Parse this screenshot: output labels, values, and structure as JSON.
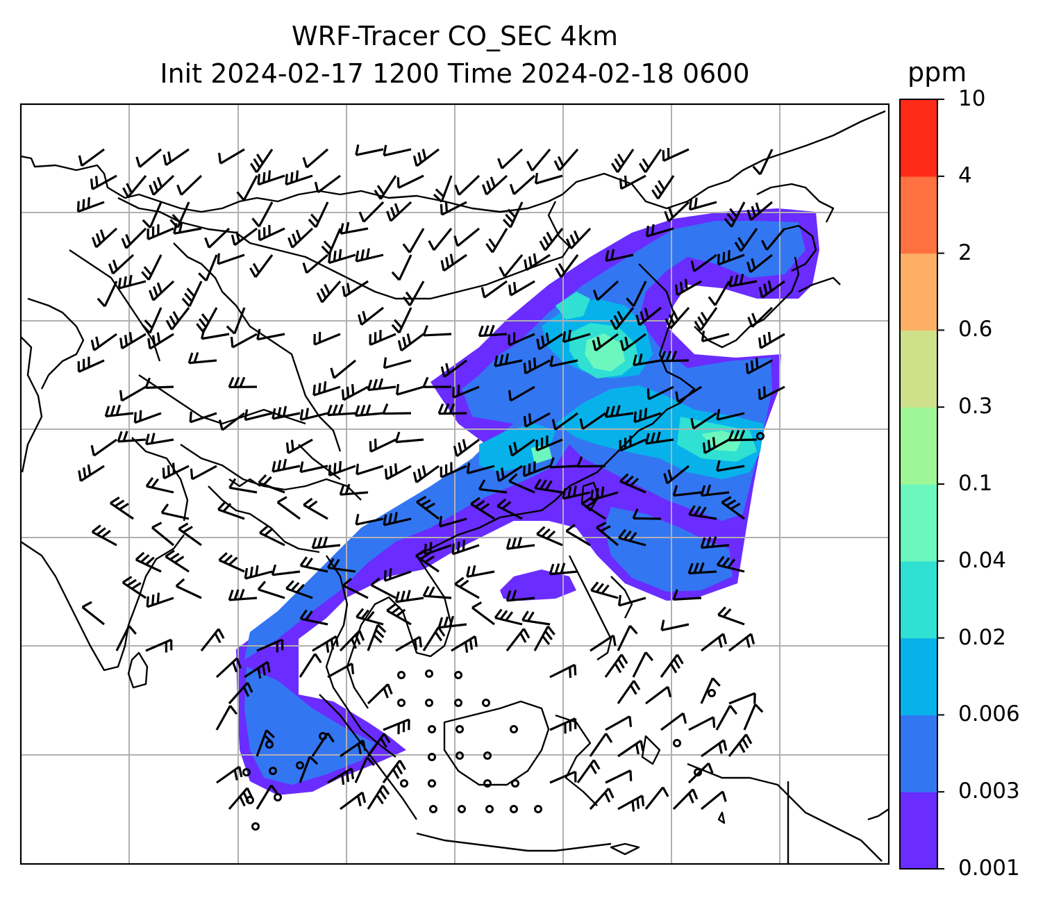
{
  "figure": {
    "title_line1": "WRF-Tracer CO_SEC 4km",
    "title_line2": "Init 2024-02-17 1200 Time 2024-02-18 0600"
  },
  "colorbar": {
    "unit": "ppm",
    "levels": [
      "0.001",
      "0.003",
      "0.006",
      "0.02",
      "0.04",
      "0.1",
      "0.3",
      "0.6",
      "2",
      "4",
      "10"
    ],
    "colors": [
      "#6a2cff",
      "#3376f2",
      "#07b2ea",
      "#30e0d2",
      "#6cf7bf",
      "#9ef796",
      "#cfe08a",
      "#fdb065",
      "#ff7140",
      "#ff2a18"
    ]
  },
  "map": {
    "gridlines": true,
    "gridline_color": "#b0b0b0",
    "coastline_color": "#000000",
    "wind_barbs": true,
    "calm_markers": true
  }
}
